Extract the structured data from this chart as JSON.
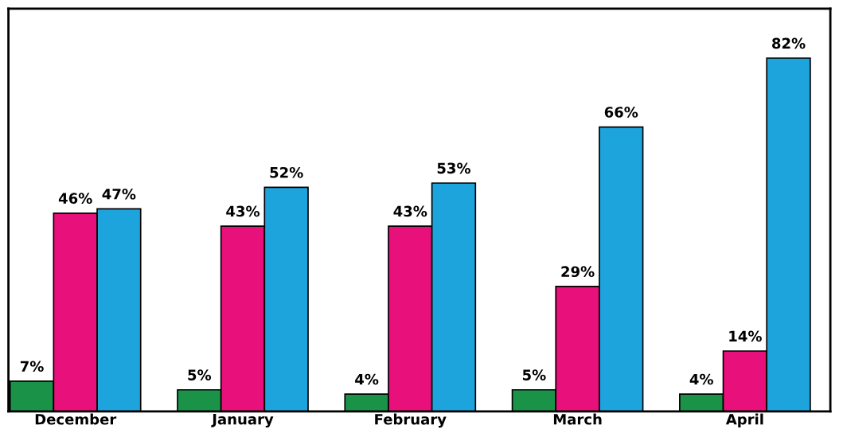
{
  "chart_data": {
    "type": "bar",
    "categories": [
      "December",
      "January",
      "February",
      "March",
      "April"
    ],
    "series": [
      {
        "color": "#1a9349",
        "values": [
          7,
          5,
          4,
          5,
          4
        ],
        "value_labels": [
          "7%",
          "5%",
          "4%",
          "5%",
          "4%"
        ]
      },
      {
        "color": "#e8107a",
        "values": [
          46,
          43,
          43,
          29,
          14
        ],
        "value_labels": [
          "46%",
          "43%",
          "43%",
          "29%",
          "14%"
        ]
      },
      {
        "color": "#1ea4dd",
        "values": [
          47,
          52,
          53,
          66,
          82
        ],
        "value_labels": [
          "47%",
          "52%",
          "53%",
          "66%",
          "82%"
        ]
      }
    ],
    "grid": false,
    "legend": false
  }
}
